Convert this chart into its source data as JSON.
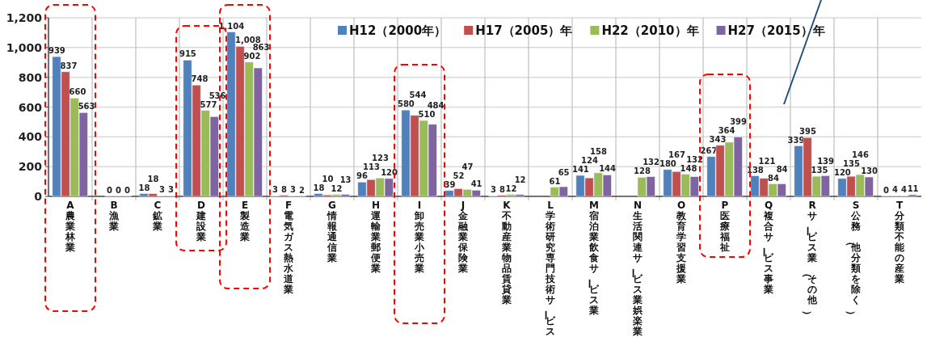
{
  "chart_data": {
    "type": "bar",
    "categories": [
      "A農業林業",
      "B漁業",
      "C鉱業",
      "D建設業",
      "E製造業",
      "F電気ガス熱水道業",
      "G情報通信業",
      "H運輸業郵便業",
      "I卸売業小売業",
      "J金融業保険業",
      "K不動産業物品賃貸業",
      "L学術研究専門技術サービス業",
      "M宿泊業飲食サービス業",
      "N生活関連サービス業娯楽業",
      "O教育学習支援業",
      "P医療福祉",
      "Q複合サービス事業",
      "Rサービス業（その他）",
      "S公務（他分類を除く）",
      "T分類不能の産業"
    ],
    "series": [
      {
        "name": "H12（2000年）",
        "color": "#4f81bd",
        "values": [
          939,
          null,
          18,
          915,
          1104,
          3,
          18,
          96,
          580,
          39,
          3,
          null,
          141,
          null,
          180,
          267,
          138,
          339,
          120,
          0
        ],
        "value_labels": [
          "939",
          null,
          "18",
          "915",
          "1,104",
          "3",
          "18",
          "96",
          "580",
          "39",
          "3",
          null,
          "141",
          null,
          "180",
          "267",
          "138",
          "339",
          "120",
          "0"
        ]
      },
      {
        "name": "H17（2005）年",
        "color": "#c0504d",
        "values": [
          837,
          0,
          18,
          748,
          1008,
          8,
          10,
          113,
          544,
          52,
          8,
          null,
          124,
          null,
          167,
          343,
          121,
          395,
          135,
          4
        ],
        "value_labels": [
          "837",
          "0",
          "18",
          "748",
          "1,008",
          "8",
          "10",
          "113",
          "544",
          "52",
          "8",
          null,
          "124",
          null,
          "167",
          "343",
          "121",
          "395",
          "135",
          "4"
        ]
      },
      {
        "name": "H22（2010）年",
        "color": "#9bbb59",
        "values": [
          660,
          0,
          3,
          577,
          902,
          3,
          12,
          123,
          510,
          47,
          12,
          61,
          158,
          128,
          148,
          364,
          84,
          135,
          146,
          4
        ],
        "value_labels": [
          "660",
          "0",
          "3",
          "577",
          "902",
          "3",
          "12",
          "123",
          "510",
          "47",
          "12",
          "61",
          "158",
          "128",
          "148",
          "364",
          "84",
          "135",
          "146",
          "4"
        ]
      },
      {
        "name": "H27（2015）年",
        "color": "#8064a2",
        "values": [
          563,
          0,
          3,
          536,
          863,
          2,
          13,
          120,
          484,
          41,
          12,
          65,
          144,
          132,
          132,
          399,
          84,
          139,
          130,
          11
        ],
        "value_labels": [
          "563",
          "0",
          "3",
          "536",
          "863",
          "2",
          "13",
          "120",
          "484",
          "41",
          "12",
          "65",
          "144",
          "132",
          "132",
          "399",
          "84",
          "139",
          "130",
          "11"
        ]
      }
    ],
    "ylim": [
      0,
      1200
    ],
    "yticks": [
      0,
      200,
      400,
      600,
      800,
      {
        "value": 1000,
        "label": "1,000"
      },
      {
        "value": 1200,
        "label": "1,200"
      }
    ],
    "grid": true,
    "legend": "top"
  }
}
